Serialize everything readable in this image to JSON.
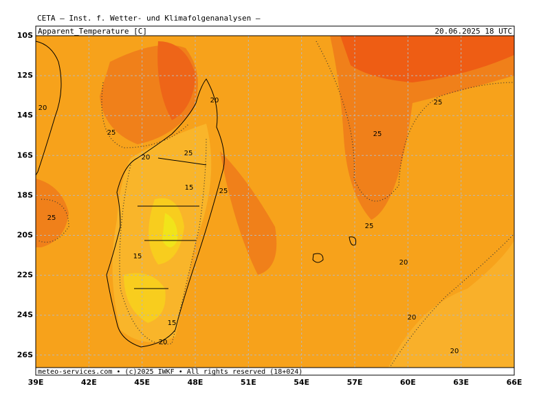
{
  "header": "CETA — Inst. f. Wetter- und Klimafolgenanalysen —",
  "title": {
    "left": "Apparent_Temperature [C]",
    "right": "20.06.2025 18 UTC"
  },
  "footer": "meteo-services.com • (c)2025 IWKF • All rights reserved (18+024)",
  "lat_labels": [
    "10S",
    "12S",
    "14S",
    "16S",
    "18S",
    "20S",
    "22S",
    "24S",
    "26S"
  ],
  "lon_labels": [
    "39E",
    "42E",
    "45E",
    "48E",
    "51E",
    "54E",
    "57E",
    "60E",
    "63E",
    "66E"
  ],
  "contour_labels": [
    25,
    20,
    20,
    25,
    20,
    15,
    25,
    25,
    15,
    15,
    20,
    25,
    25,
    25,
    20,
    20,
    20
  ]
}
